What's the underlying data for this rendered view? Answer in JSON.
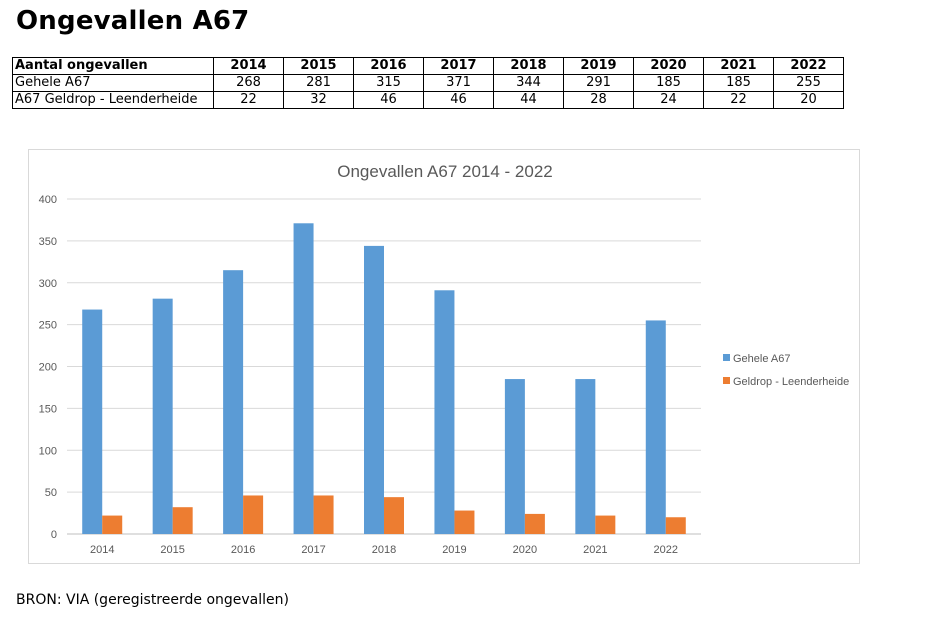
{
  "page": {
    "title": "Ongevallen A67",
    "source": "BRON: VIA (geregistreerde ongevallen)"
  },
  "table": {
    "header_label": "Aantal ongevallen",
    "years": [
      "2014",
      "2015",
      "2016",
      "2017",
      "2018",
      "2019",
      "2020",
      "2021",
      "2022"
    ],
    "rows": [
      {
        "label": "Gehele A67",
        "values": [
          "268",
          "281",
          "315",
          "371",
          "344",
          "291",
          "185",
          "185",
          "255"
        ]
      },
      {
        "label": "A67 Geldrop - Leenderheide",
        "values": [
          "22",
          "32",
          "46",
          "46",
          "44",
          "28",
          "24",
          "22",
          "20"
        ]
      }
    ]
  },
  "chart_data": {
    "type": "bar",
    "title": "Ongevallen A67 2014 - 2022",
    "categories": [
      "2014",
      "2015",
      "2016",
      "2017",
      "2018",
      "2019",
      "2020",
      "2021",
      "2022"
    ],
    "series": [
      {
        "name": "Gehele A67",
        "color": "#5b9bd5",
        "values": [
          268,
          281,
          315,
          371,
          344,
          291,
          185,
          185,
          255
        ]
      },
      {
        "name": "Geldrop - Leenderheide",
        "color": "#ed7d31",
        "values": [
          22,
          32,
          46,
          46,
          44,
          28,
          24,
          22,
          20
        ]
      }
    ],
    "xlabel": "",
    "ylabel": "",
    "ylim": [
      0,
      400
    ],
    "yticks": [
      0,
      50,
      100,
      150,
      200,
      250,
      300,
      350,
      400
    ],
    "grid": true,
    "legend": "right"
  }
}
